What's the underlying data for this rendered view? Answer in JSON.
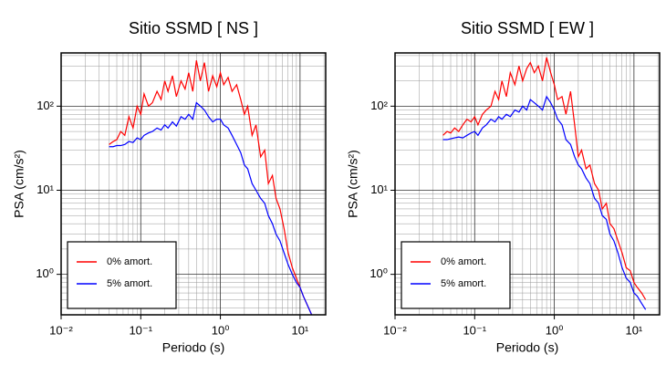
{
  "chart_data": [
    {
      "type": "line",
      "title": "Sitio SSMD [ NS ]",
      "xlabel": "Periodo (s)",
      "ylabel": "PSA (cm/s²)",
      "xscale": "log",
      "yscale": "log",
      "grid": true,
      "legend": "lower left",
      "xlim": [
        0.01,
        21
      ],
      "ylim": [
        0.33,
        430
      ],
      "xticks": [
        {
          "value": 0.01,
          "label": "10⁻²"
        },
        {
          "value": 0.1,
          "label": "10⁻¹"
        },
        {
          "value": 1,
          "label": "10⁰"
        },
        {
          "value": 10,
          "label": "10¹"
        }
      ],
      "yticks": [
        {
          "value": 1,
          "label": "10⁰"
        },
        {
          "value": 10,
          "label": "10¹"
        },
        {
          "value": 100,
          "label": "10²"
        }
      ],
      "x": [
        0.04,
        0.045,
        0.05,
        0.056,
        0.063,
        0.071,
        0.08,
        0.09,
        0.1,
        0.11,
        0.125,
        0.14,
        0.16,
        0.18,
        0.2,
        0.22,
        0.25,
        0.28,
        0.32,
        0.36,
        0.4,
        0.45,
        0.5,
        0.56,
        0.63,
        0.71,
        0.8,
        0.9,
        1.0,
        1.1,
        1.25,
        1.4,
        1.6,
        1.8,
        2.0,
        2.2,
        2.5,
        2.8,
        3.2,
        3.6,
        4.0,
        4.5,
        5.0,
        5.6,
        6.3,
        7.1,
        8.0,
        9.0,
        10,
        11,
        12.5,
        14
      ],
      "series": [
        {
          "name": "0% amort.",
          "color": "#ff0000",
          "values": [
            35,
            38,
            40,
            50,
            45,
            75,
            55,
            100,
            80,
            140,
            100,
            110,
            150,
            120,
            200,
            150,
            230,
            130,
            200,
            160,
            250,
            150,
            350,
            200,
            330,
            150,
            230,
            170,
            250,
            180,
            220,
            150,
            180,
            120,
            80,
            100,
            45,
            60,
            25,
            30,
            12,
            15,
            8,
            6,
            3.5,
            1.8,
            1.2,
            0.9,
            0.7,
            0.55,
            0.42,
            0.33
          ]
        },
        {
          "name": "5% amort.",
          "color": "#0000ff",
          "values": [
            33,
            33,
            34,
            34,
            35,
            38,
            37,
            42,
            40,
            45,
            48,
            50,
            55,
            52,
            60,
            55,
            65,
            58,
            75,
            70,
            80,
            70,
            110,
            100,
            90,
            75,
            65,
            70,
            70,
            60,
            55,
            45,
            35,
            28,
            20,
            18,
            12,
            10,
            8,
            7,
            5,
            4,
            3,
            2.5,
            1.8,
            1.3,
            1.0,
            0.8,
            0.7,
            0.55,
            0.42,
            0.33
          ]
        }
      ]
    },
    {
      "type": "line",
      "title": "Sitio SSMD [ EW ]",
      "xlabel": "Periodo (s)",
      "ylabel": "PSA (cm/s²)",
      "xscale": "log",
      "yscale": "log",
      "grid": true,
      "legend": "lower left",
      "xlim": [
        0.01,
        21
      ],
      "ylim": [
        0.33,
        430
      ],
      "xticks": [
        {
          "value": 0.01,
          "label": "10⁻²"
        },
        {
          "value": 0.1,
          "label": "10⁻¹"
        },
        {
          "value": 1,
          "label": "10⁰"
        },
        {
          "value": 10,
          "label": "10¹"
        }
      ],
      "yticks": [
        {
          "value": 1,
          "label": "10⁰"
        },
        {
          "value": 10,
          "label": "10¹"
        },
        {
          "value": 100,
          "label": "10²"
        }
      ],
      "x": [
        0.04,
        0.045,
        0.05,
        0.056,
        0.063,
        0.071,
        0.08,
        0.09,
        0.1,
        0.11,
        0.125,
        0.14,
        0.16,
        0.18,
        0.2,
        0.22,
        0.25,
        0.28,
        0.32,
        0.36,
        0.4,
        0.45,
        0.5,
        0.56,
        0.63,
        0.71,
        0.8,
        0.9,
        1.0,
        1.1,
        1.25,
        1.4,
        1.6,
        1.8,
        2.0,
        2.2,
        2.5,
        2.8,
        3.2,
        3.6,
        4.0,
        4.5,
        5.0,
        5.6,
        6.3,
        7.1,
        8.0,
        9.0,
        10,
        11,
        12.5,
        14
      ],
      "series": [
        {
          "name": "0% amort.",
          "color": "#ff0000",
          "values": [
            45,
            50,
            48,
            55,
            50,
            60,
            70,
            65,
            75,
            60,
            80,
            90,
            100,
            150,
            120,
            200,
            130,
            250,
            180,
            300,
            200,
            280,
            330,
            250,
            300,
            200,
            380,
            250,
            180,
            120,
            130,
            80,
            150,
            60,
            25,
            30,
            18,
            20,
            12,
            10,
            6,
            7,
            4,
            3.5,
            2.5,
            1.8,
            1.2,
            1.1,
            0.8,
            0.7,
            0.6,
            0.5
          ]
        },
        {
          "name": "5% amort.",
          "color": "#0000ff",
          "values": [
            40,
            40,
            41,
            42,
            43,
            42,
            45,
            48,
            50,
            45,
            55,
            60,
            70,
            65,
            75,
            70,
            80,
            75,
            90,
            85,
            100,
            90,
            120,
            110,
            100,
            90,
            130,
            110,
            90,
            70,
            60,
            40,
            35,
            25,
            20,
            18,
            14,
            12,
            8,
            7,
            5,
            4.5,
            3,
            2.5,
            1.8,
            1.2,
            0.9,
            0.8,
            0.6,
            0.55,
            0.45,
            0.38
          ]
        }
      ]
    }
  ]
}
